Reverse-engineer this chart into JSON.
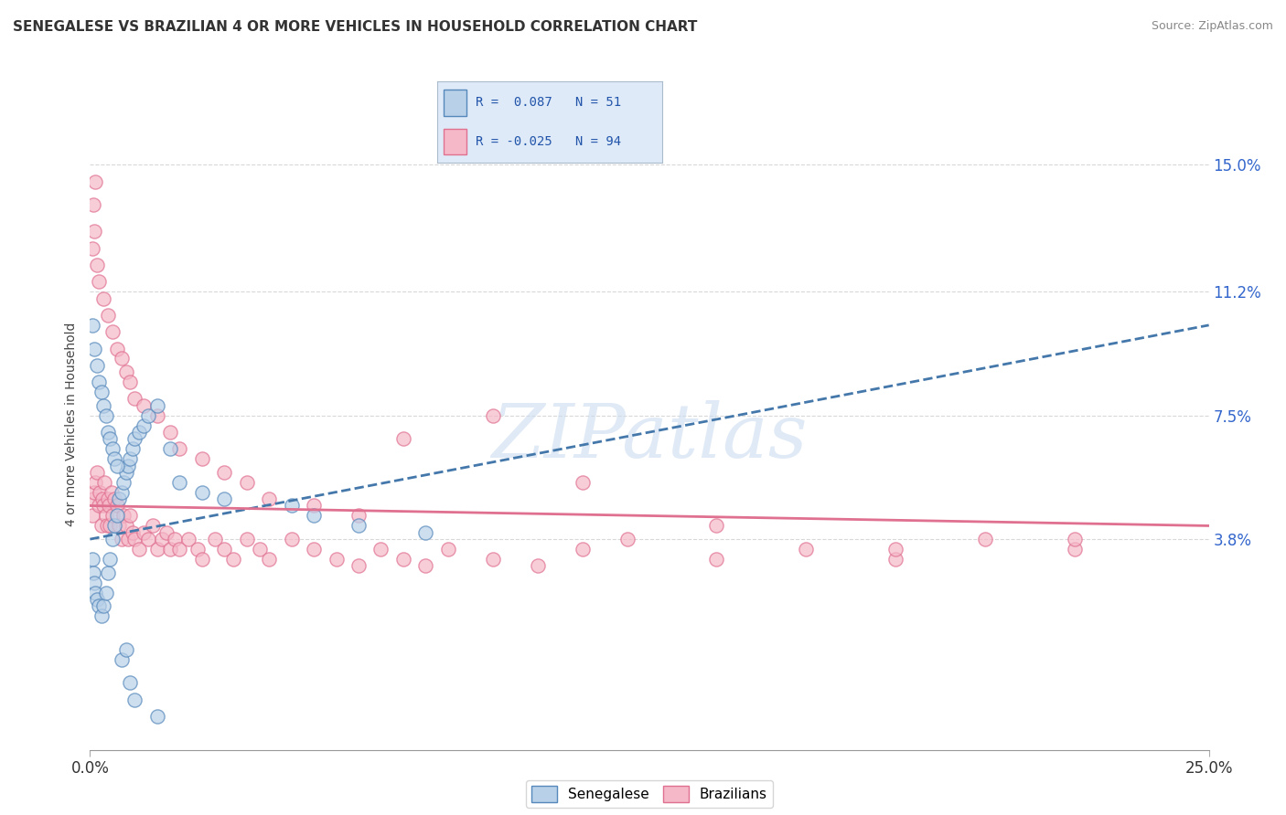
{
  "title": "SENEGALESE VS BRAZILIAN 4 OR MORE VEHICLES IN HOUSEHOLD CORRELATION CHART",
  "source": "Source: ZipAtlas.com",
  "ylabel": "4 or more Vehicles in Household",
  "xlim": [
    0.0,
    25.0
  ],
  "ylim": [
    -2.5,
    17.0
  ],
  "ytick_vals": [
    3.8,
    7.5,
    11.2,
    15.0
  ],
  "ytick_labels": [
    "3.8%",
    "7.5%",
    "11.2%",
    "15.0%"
  ],
  "xtick_vals": [
    0.0,
    25.0
  ],
  "xtick_labels": [
    "0.0%",
    "25.0%"
  ],
  "background_color": "#ffffff",
  "grid_color": "#d8d8d8",
  "senegalese_fill": "#b8d0e8",
  "senegalese_edge": "#5588bb",
  "brazilian_fill": "#f5b8c8",
  "brazilian_edge": "#e07090",
  "sen_line_color": "#4477aa",
  "bra_line_color": "#e07090",
  "watermark": "ZIPatlas",
  "legend": {
    "r1": 0.087,
    "n1": 51,
    "r2": -0.025,
    "n2": 94
  },
  "sen_line": {
    "x0": 0.0,
    "y0": 3.8,
    "x1": 25.0,
    "y1": 10.2
  },
  "bra_line": {
    "x0": 0.0,
    "y0": 4.8,
    "x1": 25.0,
    "y1": 4.2
  },
  "senegalese_x": [
    0.05,
    0.08,
    0.1,
    0.12,
    0.15,
    0.2,
    0.25,
    0.3,
    0.35,
    0.4,
    0.45,
    0.5,
    0.55,
    0.6,
    0.65,
    0.7,
    0.75,
    0.8,
    0.85,
    0.9,
    0.95,
    1.0,
    1.1,
    1.2,
    1.3,
    1.5,
    1.8,
    2.0,
    2.5,
    3.0,
    4.5,
    5.0,
    6.0,
    7.5,
    0.05,
    0.1,
    0.15,
    0.2,
    0.25,
    0.3,
    0.35,
    0.4,
    0.45,
    0.5,
    0.55,
    0.6,
    0.7,
    0.8,
    0.9,
    1.0,
    1.5
  ],
  "senegalese_y": [
    3.2,
    2.8,
    2.5,
    2.2,
    2.0,
    1.8,
    1.5,
    1.8,
    2.2,
    2.8,
    3.2,
    3.8,
    4.2,
    4.5,
    5.0,
    5.2,
    5.5,
    5.8,
    6.0,
    6.2,
    6.5,
    6.8,
    7.0,
    7.2,
    7.5,
    7.8,
    6.5,
    5.5,
    5.2,
    5.0,
    4.8,
    4.5,
    4.2,
    4.0,
    10.2,
    9.5,
    9.0,
    8.5,
    8.2,
    7.8,
    7.5,
    7.0,
    6.8,
    6.5,
    6.2,
    6.0,
    0.2,
    0.5,
    -0.5,
    -1.0,
    -1.5
  ],
  "brazilian_x": [
    0.05,
    0.08,
    0.1,
    0.12,
    0.15,
    0.2,
    0.22,
    0.25,
    0.28,
    0.3,
    0.32,
    0.35,
    0.38,
    0.4,
    0.42,
    0.45,
    0.48,
    0.5,
    0.55,
    0.6,
    0.65,
    0.7,
    0.75,
    0.8,
    0.85,
    0.9,
    0.95,
    1.0,
    1.1,
    1.2,
    1.3,
    1.4,
    1.5,
    1.6,
    1.7,
    1.8,
    1.9,
    2.0,
    2.2,
    2.4,
    2.5,
    2.8,
    3.0,
    3.2,
    3.5,
    3.8,
    4.0,
    4.5,
    5.0,
    5.5,
    6.0,
    6.5,
    7.0,
    7.5,
    8.0,
    9.0,
    10.0,
    11.0,
    12.0,
    14.0,
    16.0,
    18.0,
    20.0,
    22.0,
    0.05,
    0.1,
    0.15,
    0.2,
    0.3,
    0.4,
    0.5,
    0.6,
    0.7,
    0.8,
    0.9,
    1.0,
    1.2,
    1.5,
    1.8,
    2.0,
    2.5,
    3.0,
    3.5,
    4.0,
    5.0,
    6.0,
    7.0,
    9.0,
    11.0,
    14.0,
    18.0,
    22.0,
    0.08,
    0.12
  ],
  "brazilian_y": [
    4.5,
    5.0,
    5.2,
    5.5,
    5.8,
    4.8,
    5.2,
    4.2,
    5.0,
    4.8,
    5.5,
    4.5,
    4.2,
    5.0,
    4.8,
    4.2,
    5.2,
    4.5,
    5.0,
    4.8,
    4.2,
    3.8,
    4.5,
    4.2,
    3.8,
    4.5,
    4.0,
    3.8,
    3.5,
    4.0,
    3.8,
    4.2,
    3.5,
    3.8,
    4.0,
    3.5,
    3.8,
    3.5,
    3.8,
    3.5,
    3.2,
    3.8,
    3.5,
    3.2,
    3.8,
    3.5,
    3.2,
    3.8,
    3.5,
    3.2,
    3.0,
    3.5,
    3.2,
    3.0,
    3.5,
    3.2,
    3.0,
    3.5,
    3.8,
    3.2,
    3.5,
    3.2,
    3.8,
    3.5,
    12.5,
    13.0,
    12.0,
    11.5,
    11.0,
    10.5,
    10.0,
    9.5,
    9.2,
    8.8,
    8.5,
    8.0,
    7.8,
    7.5,
    7.0,
    6.5,
    6.2,
    5.8,
    5.5,
    5.0,
    4.8,
    4.5,
    6.8,
    7.5,
    5.5,
    4.2,
    3.5,
    3.8,
    13.8,
    14.5
  ]
}
